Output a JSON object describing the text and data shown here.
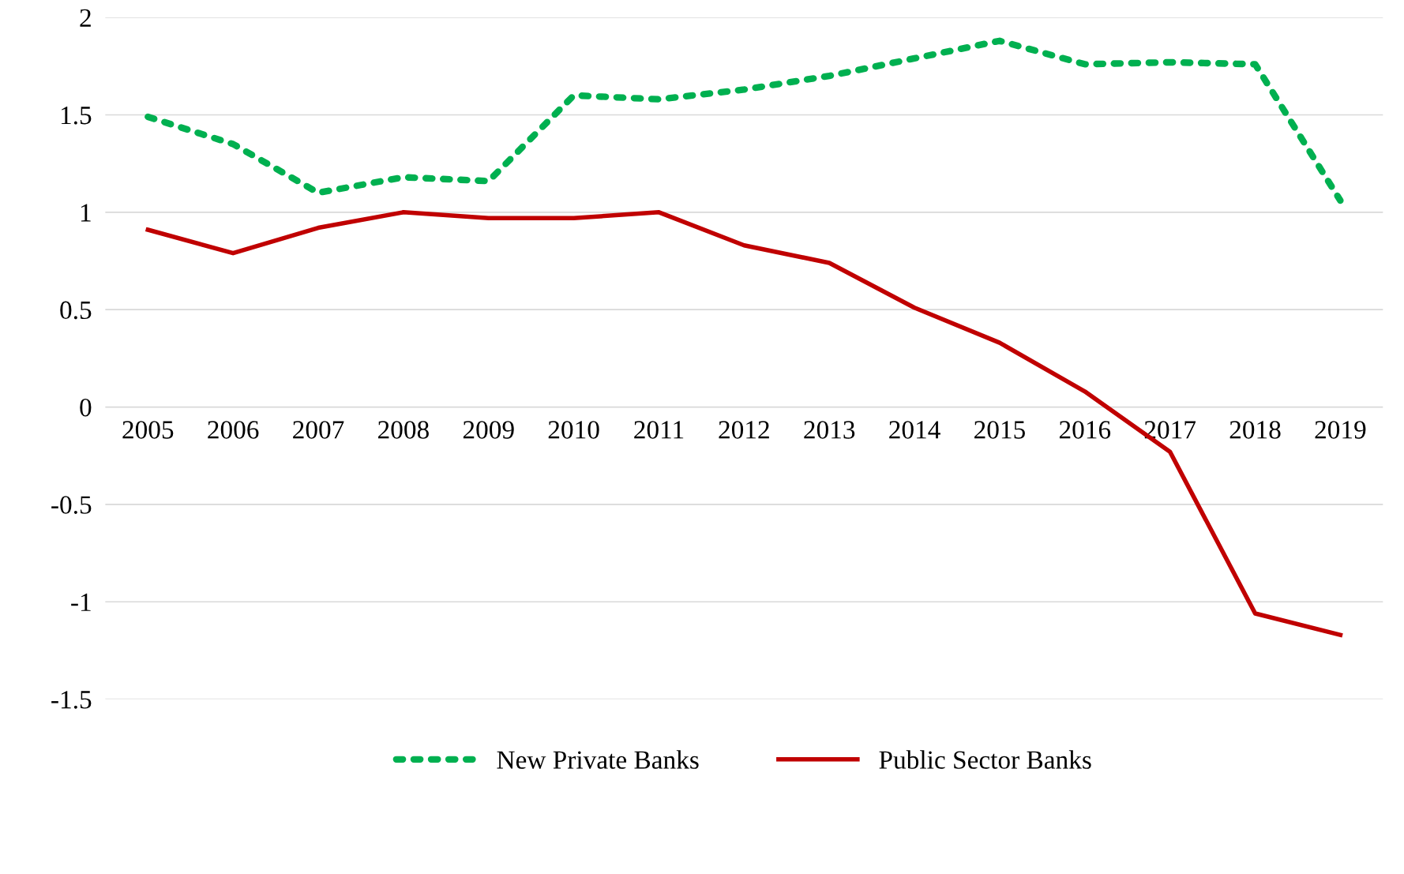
{
  "chart_data": {
    "type": "line",
    "categories": [
      "2005",
      "2006",
      "2007",
      "2008",
      "2009",
      "2010",
      "2011",
      "2012",
      "2013",
      "2014",
      "2015",
      "2016",
      "2017",
      "2018",
      "2019"
    ],
    "series": [
      {
        "name": "New Private Banks",
        "color": "#00b050",
        "line_style": "dotted",
        "values": [
          1.49,
          1.35,
          1.1,
          1.18,
          1.16,
          1.6,
          1.58,
          1.63,
          1.7,
          1.79,
          1.88,
          1.76,
          1.77,
          1.76,
          1.06
        ]
      },
      {
        "name": "Public Sector Banks",
        "color": "#c00000",
        "line_style": "solid",
        "values": [
          0.91,
          0.79,
          0.92,
          1.0,
          0.97,
          0.97,
          1.0,
          0.83,
          0.74,
          0.51,
          0.33,
          0.08,
          -0.23,
          -1.06,
          -1.17
        ]
      }
    ],
    "ylim": [
      -1.5,
      2
    ],
    "yticks": [
      {
        "value": -1.5,
        "label": "-1.5"
      },
      {
        "value": -1,
        "label": "-1"
      },
      {
        "value": -0.5,
        "label": "-0.5"
      },
      0,
      0.5,
      1,
      1.5,
      2
    ],
    "grid": "y",
    "legend": "bottom",
    "marker": "none"
  }
}
